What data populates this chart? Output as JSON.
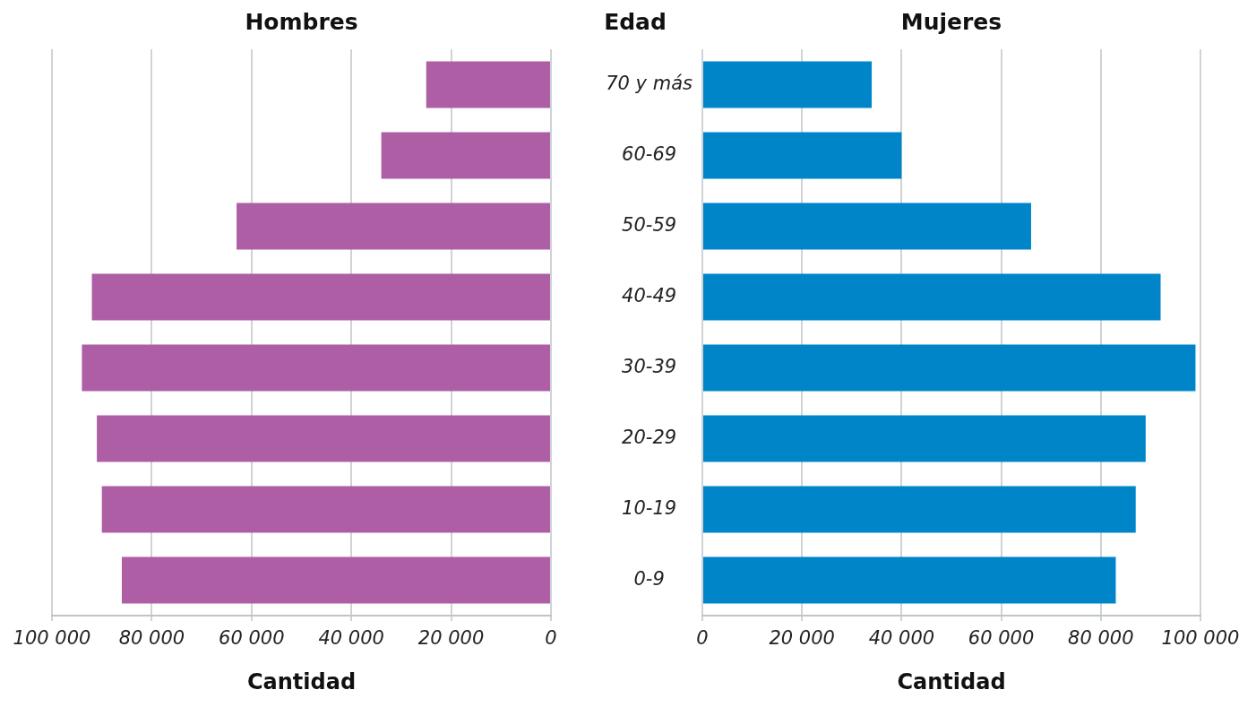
{
  "chart_data": [
    {
      "type": "bar",
      "orientation": "horizontal",
      "title": "Hombres",
      "xlabel": "Cantidad",
      "categories": [
        null,
        null,
        null,
        null,
        null,
        null,
        null,
        null
      ],
      "values": [
        25000,
        34000,
        63000,
        92000,
        94000,
        91000,
        90000,
        86000
      ],
      "color": "#ad5ea5",
      "xlim": [
        100000,
        0
      ],
      "xticks": [
        {
          "value": 100000,
          "label": "100 000"
        },
        {
          "value": 80000,
          "label": "80 000"
        },
        {
          "value": 60000,
          "label": "60 000"
        },
        {
          "value": 40000,
          "label": "40 000"
        },
        {
          "value": 20000,
          "label": "20 000"
        },
        0
      ],
      "grid": "x",
      "tick_labels": "x"
    },
    {
      "type": "bar",
      "orientation": "horizontal",
      "title": "Mujeres",
      "xlabel": "Cantidad",
      "ylabel": "Edad",
      "categories": [
        "70 y más",
        "60-69",
        "50-59",
        "40-49",
        "30-39",
        "20-29",
        "10-19",
        "0-9"
      ],
      "values": [
        34000,
        40000,
        66000,
        92000,
        99000,
        89000,
        87000,
        83000
      ],
      "color": "#0085c9",
      "xlim": [
        0,
        100000
      ],
      "xticks": [
        0,
        {
          "value": 20000,
          "label": "20 000"
        },
        {
          "value": 40000,
          "label": "40 000"
        },
        {
          "value": 60000,
          "label": "60 000"
        },
        {
          "value": 80000,
          "label": "80 000"
        },
        {
          "value": 100000,
          "label": "100 000"
        }
      ],
      "grid": "x"
    }
  ]
}
